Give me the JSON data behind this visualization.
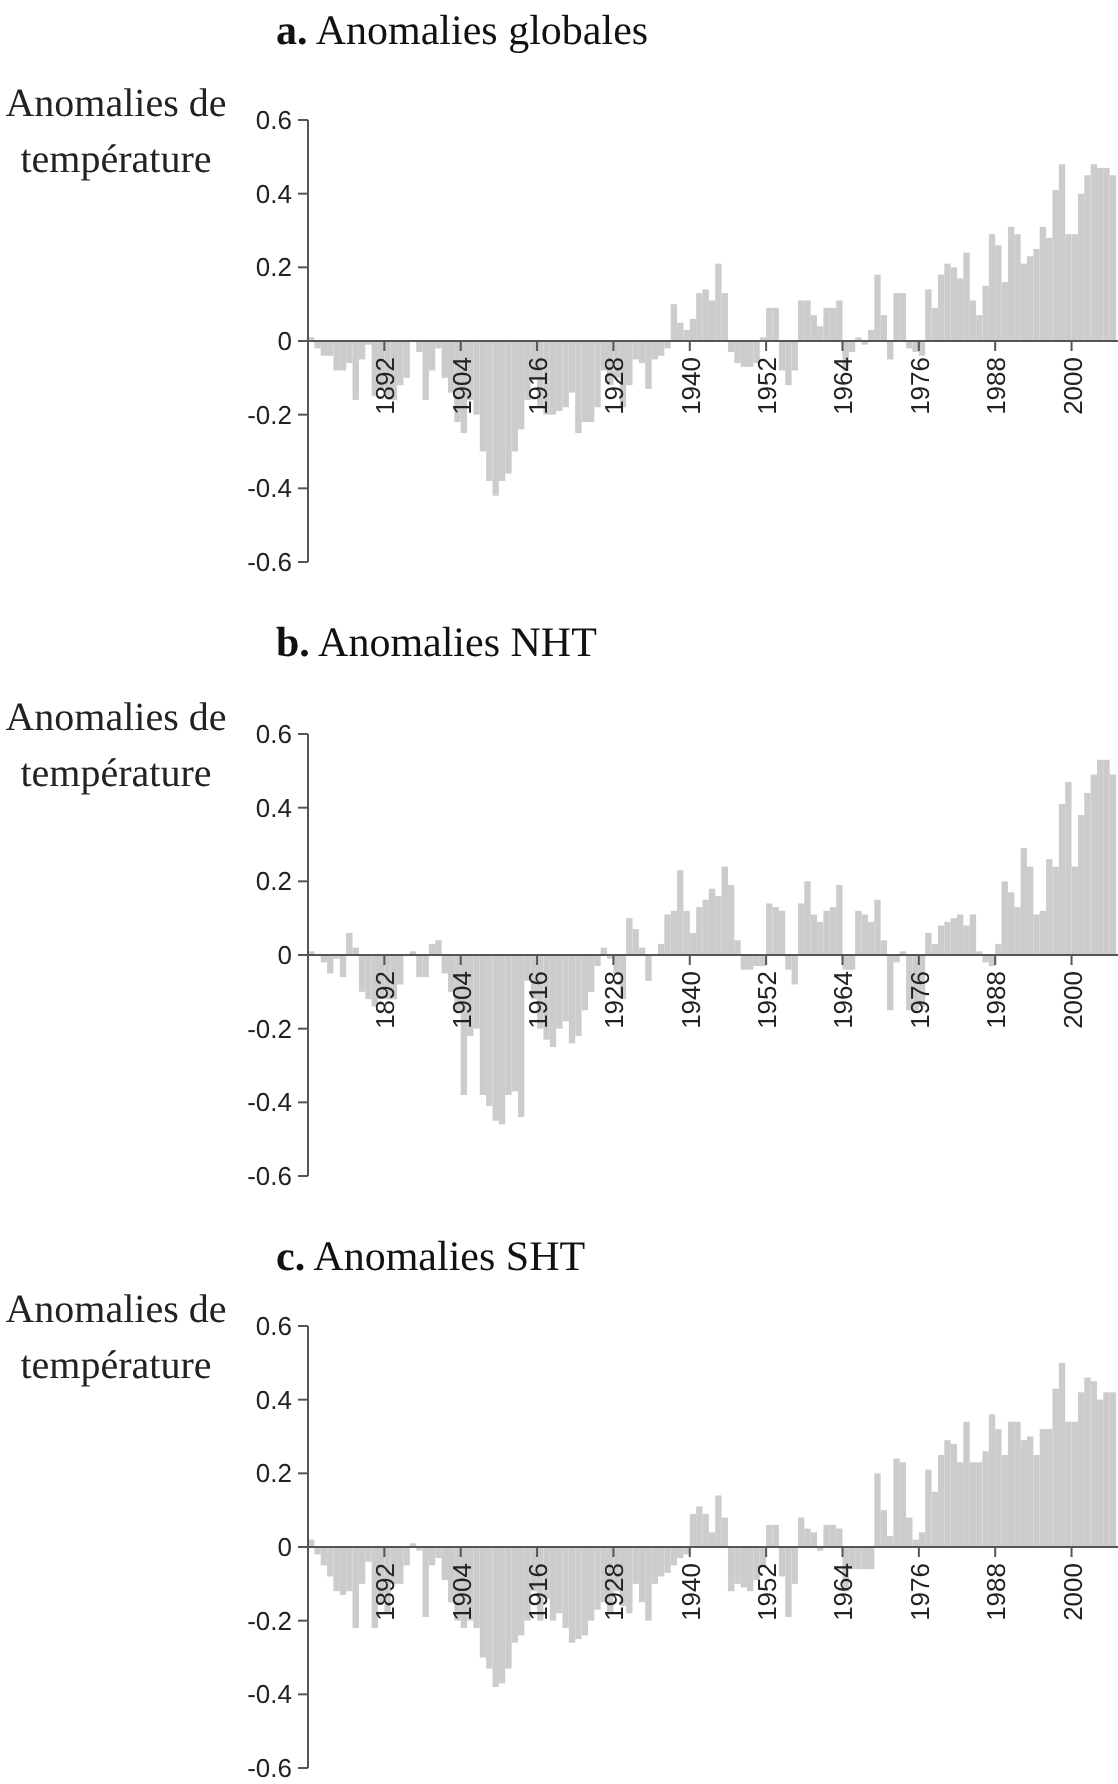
{
  "chart_data": [
    {
      "type": "bar",
      "title": "a. Anomalies globales",
      "ylabel": "Anomalies de\ntempérature",
      "color": "#cccccc",
      "xlim": [
        1880,
        2007.3
      ],
      "xticks": [
        1892,
        1904,
        1916,
        1928,
        1940,
        1952,
        1964,
        1976,
        1988,
        2000
      ],
      "ylim": [
        -0.6,
        0.6
      ],
      "yticks": [
        -0.6,
        -0.4,
        -0.2,
        0,
        0.2,
        0.4,
        0.6
      ],
      "x": [
        1880,
        1881,
        1882,
        1883,
        1884,
        1885,
        1886,
        1887,
        1888,
        1889,
        1890,
        1891,
        1892,
        1893,
        1894,
        1895,
        1896,
        1897,
        1898,
        1899,
        1900,
        1901,
        1902,
        1903,
        1904,
        1905,
        1906,
        1907,
        1908,
        1909,
        1910,
        1911,
        1912,
        1913,
        1914,
        1915,
        1916,
        1917,
        1918,
        1919,
        1920,
        1921,
        1922,
        1923,
        1924,
        1925,
        1926,
        1927,
        1928,
        1929,
        1930,
        1931,
        1932,
        1933,
        1934,
        1935,
        1936,
        1937,
        1938,
        1939,
        1940,
        1941,
        1942,
        1943,
        1944,
        1945,
        1946,
        1947,
        1948,
        1949,
        1950,
        1951,
        1952,
        1953,
        1954,
        1955,
        1956,
        1957,
        1958,
        1959,
        1960,
        1961,
        1962,
        1963,
        1964,
        1965,
        1966,
        1967,
        1968,
        1969,
        1970,
        1971,
        1972,
        1973,
        1974,
        1975,
        1976,
        1977,
        1978,
        1979,
        1980,
        1981,
        1982,
        1983,
        1984,
        1985,
        1986,
        1987,
        1988,
        1989,
        1990,
        1991,
        1992,
        1993,
        1994,
        1995,
        1996,
        1997,
        1998,
        1999,
        2000,
        2001,
        2002,
        2003,
        2004,
        2005,
        2006
      ],
      "values": [
        0.01,
        -0.02,
        -0.04,
        -0.04,
        -0.08,
        -0.08,
        -0.06,
        -0.16,
        -0.05,
        -0.01,
        -0.15,
        -0.13,
        -0.15,
        -0.16,
        -0.12,
        -0.1,
        0.0,
        -0.03,
        -0.16,
        -0.08,
        -0.02,
        -0.1,
        -0.14,
        -0.22,
        -0.25,
        -0.16,
        -0.2,
        -0.3,
        -0.38,
        -0.42,
        -0.38,
        -0.36,
        -0.3,
        -0.24,
        -0.16,
        -0.1,
        -0.18,
        -0.2,
        -0.2,
        -0.19,
        -0.18,
        -0.14,
        -0.25,
        -0.22,
        -0.22,
        -0.18,
        -0.08,
        -0.12,
        -0.1,
        -0.18,
        -0.12,
        -0.05,
        -0.06,
        -0.13,
        -0.05,
        -0.04,
        -0.02,
        0.1,
        0.05,
        0.03,
        0.06,
        0.13,
        0.14,
        0.11,
        0.21,
        0.13,
        -0.03,
        -0.06,
        -0.07,
        -0.07,
        -0.06,
        0.01,
        0.09,
        0.09,
        -0.08,
        -0.12,
        -0.08,
        0.11,
        0.11,
        0.07,
        0.04,
        0.09,
        0.09,
        0.11,
        -0.08,
        -0.03,
        0.01,
        -0.01,
        0.03,
        0.18,
        0.07,
        -0.05,
        0.13,
        0.13,
        -0.02,
        -0.03,
        -0.04,
        0.14,
        0.09,
        0.18,
        0.21,
        0.2,
        0.17,
        0.24,
        0.11,
        0.07,
        0.15,
        0.29,
        0.26,
        0.16,
        0.31,
        0.29,
        0.21,
        0.23,
        0.25,
        0.31,
        0.28,
        0.41,
        0.48,
        0.29,
        0.29,
        0.4,
        0.45,
        0.48,
        0.47,
        0.47,
        0.45
      ]
    },
    {
      "type": "bar",
      "title": "b. Anomalies NHT",
      "ylabel": "Anomalies de\ntempérature",
      "color": "#cccccc",
      "xlim": [
        1880,
        2007.3
      ],
      "xticks": [
        1892,
        1904,
        1916,
        1928,
        1940,
        1952,
        1964,
        1976,
        1988,
        2000
      ],
      "ylim": [
        -0.6,
        0.6
      ],
      "yticks": [
        -0.6,
        -0.4,
        -0.2,
        0,
        0.2,
        0.4,
        0.6
      ],
      "x": [
        1880,
        1881,
        1882,
        1883,
        1884,
        1885,
        1886,
        1887,
        1888,
        1889,
        1890,
        1891,
        1892,
        1893,
        1894,
        1895,
        1896,
        1897,
        1898,
        1899,
        1900,
        1901,
        1902,
        1903,
        1904,
        1905,
        1906,
        1907,
        1908,
        1909,
        1910,
        1911,
        1912,
        1913,
        1914,
        1915,
        1916,
        1917,
        1918,
        1919,
        1920,
        1921,
        1922,
        1923,
        1924,
        1925,
        1926,
        1927,
        1928,
        1929,
        1930,
        1931,
        1932,
        1933,
        1934,
        1935,
        1936,
        1937,
        1938,
        1939,
        1940,
        1941,
        1942,
        1943,
        1944,
        1945,
        1946,
        1947,
        1948,
        1949,
        1950,
        1951,
        1952,
        1953,
        1954,
        1955,
        1956,
        1957,
        1958,
        1959,
        1960,
        1961,
        1962,
        1963,
        1964,
        1965,
        1966,
        1967,
        1968,
        1969,
        1970,
        1971,
        1972,
        1973,
        1974,
        1975,
        1976,
        1977,
        1978,
        1979,
        1980,
        1981,
        1982,
        1983,
        1984,
        1985,
        1986,
        1987,
        1988,
        1989,
        1990,
        1991,
        1992,
        1993,
        1994,
        1995,
        1996,
        1997,
        1998,
        1999,
        2000,
        2001,
        2002,
        2003,
        2004,
        2005,
        2006
      ],
      "values": [
        0.01,
        0.0,
        -0.02,
        -0.05,
        -0.01,
        -0.06,
        0.06,
        0.02,
        -0.1,
        -0.12,
        -0.14,
        -0.12,
        -0.12,
        -0.12,
        -0.08,
        0.0,
        0.01,
        -0.06,
        -0.06,
        0.03,
        0.04,
        -0.05,
        -0.1,
        -0.15,
        -0.38,
        -0.22,
        -0.2,
        -0.38,
        -0.41,
        -0.45,
        -0.46,
        -0.38,
        -0.37,
        -0.44,
        -0.07,
        -0.12,
        -0.2,
        -0.23,
        -0.25,
        -0.2,
        -0.18,
        -0.24,
        -0.22,
        -0.15,
        -0.1,
        -0.03,
        0.02,
        -0.01,
        -0.05,
        -0.12,
        0.1,
        0.07,
        0.02,
        -0.07,
        0.0,
        0.03,
        0.11,
        0.12,
        0.23,
        0.12,
        0.06,
        0.13,
        0.15,
        0.18,
        0.16,
        0.24,
        0.19,
        0.04,
        -0.04,
        -0.04,
        -0.03,
        -0.03,
        0.14,
        0.13,
        0.12,
        -0.04,
        -0.08,
        0.14,
        0.2,
        0.11,
        0.09,
        0.12,
        0.13,
        0.19,
        -0.04,
        -0.04,
        0.12,
        0.11,
        0.09,
        0.15,
        0.04,
        -0.15,
        -0.02,
        0.01,
        -0.15,
        -0.15,
        -0.14,
        0.06,
        0.03,
        0.08,
        0.09,
        0.1,
        0.11,
        0.08,
        0.11,
        0.01,
        -0.02,
        -0.03,
        0.03,
        0.2,
        0.17,
        0.13,
        0.29,
        0.24,
        0.11,
        0.12,
        0.26,
        0.24,
        0.41,
        0.47,
        0.24,
        0.38,
        0.44,
        0.49,
        0.53,
        0.53,
        0.49
      ]
    },
    {
      "type": "bar",
      "title": "c. Anomalies SHT",
      "ylabel": "Anomalies de\ntempérature",
      "color": "#cccccc",
      "xlim": [
        1880,
        2007.3
      ],
      "xticks": [
        1892,
        1904,
        1916,
        1928,
        1940,
        1952,
        1964,
        1976,
        1988,
        2000
      ],
      "ylim": [
        -0.6,
        0.6
      ],
      "yticks": [
        -0.6,
        -0.4,
        -0.2,
        0,
        0.2,
        0.4,
        0.6
      ],
      "x": [
        1880,
        1881,
        1882,
        1883,
        1884,
        1885,
        1886,
        1887,
        1888,
        1889,
        1890,
        1891,
        1892,
        1893,
        1894,
        1895,
        1896,
        1897,
        1898,
        1899,
        1900,
        1901,
        1902,
        1903,
        1904,
        1905,
        1906,
        1907,
        1908,
        1909,
        1910,
        1911,
        1912,
        1913,
        1914,
        1915,
        1916,
        1917,
        1918,
        1919,
        1920,
        1921,
        1922,
        1923,
        1924,
        1925,
        1926,
        1927,
        1928,
        1929,
        1930,
        1931,
        1932,
        1933,
        1934,
        1935,
        1936,
        1937,
        1938,
        1939,
        1940,
        1941,
        1942,
        1943,
        1944,
        1945,
        1946,
        1947,
        1948,
        1949,
        1950,
        1951,
        1952,
        1953,
        1954,
        1955,
        1956,
        1957,
        1958,
        1959,
        1960,
        1961,
        1962,
        1963,
        1964,
        1965,
        1966,
        1967,
        1968,
        1969,
        1970,
        1971,
        1972,
        1973,
        1974,
        1975,
        1976,
        1977,
        1978,
        1979,
        1980,
        1981,
        1982,
        1983,
        1984,
        1985,
        1986,
        1987,
        1988,
        1989,
        1990,
        1991,
        1992,
        1993,
        1994,
        1995,
        1996,
        1997,
        1998,
        1999,
        2000,
        2001,
        2002,
        2003,
        2004,
        2005,
        2006
      ],
      "values": [
        0.02,
        -0.02,
        -0.05,
        -0.08,
        -0.12,
        -0.13,
        -0.12,
        -0.22,
        -0.1,
        -0.04,
        -0.22,
        -0.15,
        -0.18,
        -0.1,
        -0.1,
        -0.05,
        0.01,
        -0.01,
        -0.19,
        -0.05,
        -0.03,
        -0.09,
        -0.15,
        -0.2,
        -0.22,
        -0.2,
        -0.22,
        -0.3,
        -0.33,
        -0.38,
        -0.37,
        -0.33,
        -0.26,
        -0.24,
        -0.2,
        -0.12,
        -0.2,
        -0.14,
        -0.2,
        -0.18,
        -0.22,
        -0.26,
        -0.25,
        -0.24,
        -0.2,
        -0.17,
        -0.15,
        -0.18,
        -0.12,
        -0.16,
        -0.18,
        -0.1,
        -0.15,
        -0.2,
        -0.1,
        -0.08,
        -0.07,
        -0.05,
        -0.03,
        -0.02,
        0.09,
        0.11,
        0.09,
        0.04,
        0.14,
        0.08,
        -0.12,
        -0.1,
        -0.11,
        -0.12,
        -0.09,
        -0.05,
        0.06,
        0.06,
        -0.08,
        -0.19,
        -0.1,
        0.08,
        0.05,
        0.04,
        -0.01,
        0.06,
        0.06,
        0.05,
        -0.12,
        -0.06,
        -0.06,
        -0.06,
        -0.06,
        0.2,
        0.1,
        0.03,
        0.24,
        0.23,
        0.08,
        0.02,
        0.04,
        0.21,
        0.15,
        0.25,
        0.29,
        0.28,
        0.23,
        0.34,
        0.23,
        0.23,
        0.26,
        0.36,
        0.32,
        0.25,
        0.34,
        0.34,
        0.29,
        0.3,
        0.25,
        0.32,
        0.32,
        0.43,
        0.5,
        0.34,
        0.34,
        0.42,
        0.46,
        0.45,
        0.4,
        0.42,
        0.42
      ]
    }
  ]
}
